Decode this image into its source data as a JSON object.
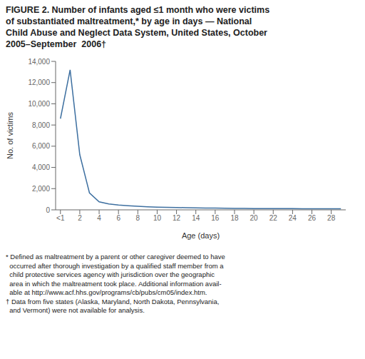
{
  "chart_data": {
    "type": "line",
    "title": [
      "FIGURE 2. Number of infants aged ≤1 month who were victims",
      "of substantiated maltreatment,* by age in days — National",
      "Child Abuse and Neglect Data System, United States, October",
      "2005–September  2006†"
    ],
    "x_label": "Age (days)",
    "y_label": "No. of victims",
    "x": [
      0,
      1,
      2,
      3,
      4,
      5,
      6,
      7,
      8,
      9,
      10,
      11,
      12,
      13,
      14,
      15,
      16,
      17,
      18,
      19,
      20,
      21,
      22,
      23,
      24,
      25,
      26,
      27,
      28,
      29
    ],
    "values": [
      8600,
      13200,
      5200,
      1600,
      750,
      550,
      450,
      380,
      330,
      290,
      260,
      240,
      220,
      200,
      185,
      170,
      160,
      150,
      140,
      135,
      125,
      120,
      115,
      112,
      110,
      108,
      106,
      104,
      102,
      100
    ],
    "color": "#3d6fa0",
    "xlim": [
      -0.5,
      29.5
    ],
    "xticks": [
      {
        "value": 0,
        "label": "<1"
      },
      2,
      4,
      6,
      8,
      10,
      12,
      14,
      16,
      18,
      20,
      22,
      24,
      26,
      28
    ],
    "ylim": [
      0,
      14000
    ],
    "yticks": [
      0,
      {
        "value": 2000,
        "label": "2,000"
      },
      {
        "value": 4000,
        "label": "4,000"
      },
      {
        "value": 6000,
        "label": "6,000"
      },
      {
        "value": 8000,
        "label": "8,000"
      },
      {
        "value": 10000,
        "label": "10,000"
      },
      {
        "value": 12000,
        "label": "12,000"
      },
      {
        "value": 14000,
        "label": "14,000"
      }
    ],
    "grid": false,
    "annotations": [
      "* Defined as maltreatment by a parent or other caregiver deemed to have",
      "  occurred after thorough investigation by a qualified staff member from a",
      "  child protective services agency with jurisdiction over the geographic",
      "  area in which the maltreatment took place. Additional information avail-",
      "  able at http://www.acf.hhs.gov/programs/cb/pubs/cm05/index.htm.",
      "† Data from five states (Alaska, Maryland, North Dakota, Pennsylvania,",
      "  and Vermont) were not available for analysis."
    ]
  }
}
